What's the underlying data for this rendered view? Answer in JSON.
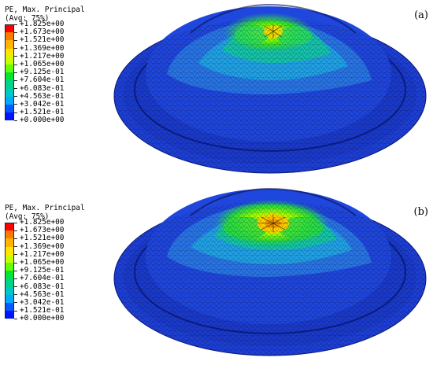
{
  "legend": {
    "title_line1": "PE, Max. Principal",
    "title_line2": "(Avg: 75%)",
    "values": [
      "+1.825e+00",
      "+1.673e+00",
      "+1.521e+00",
      "+1.369e+00",
      "+1.217e+00",
      "+1.065e+00",
      "+9.125e-01",
      "+7.604e-01",
      "+6.083e-01",
      "+4.563e-01",
      "+3.042e-01",
      "+1.521e-01",
      "+0.000e+00"
    ],
    "colors": [
      "#ff0000",
      "#ff7a00",
      "#ffb400",
      "#ffe600",
      "#c8ff00",
      "#64ff00",
      "#00e632",
      "#00d28c",
      "#00c8c8",
      "#00aaff",
      "#005aff",
      "#0014ff"
    ]
  },
  "panels": [
    {
      "label": "(a)"
    },
    {
      "label": "(b)"
    }
  ]
}
